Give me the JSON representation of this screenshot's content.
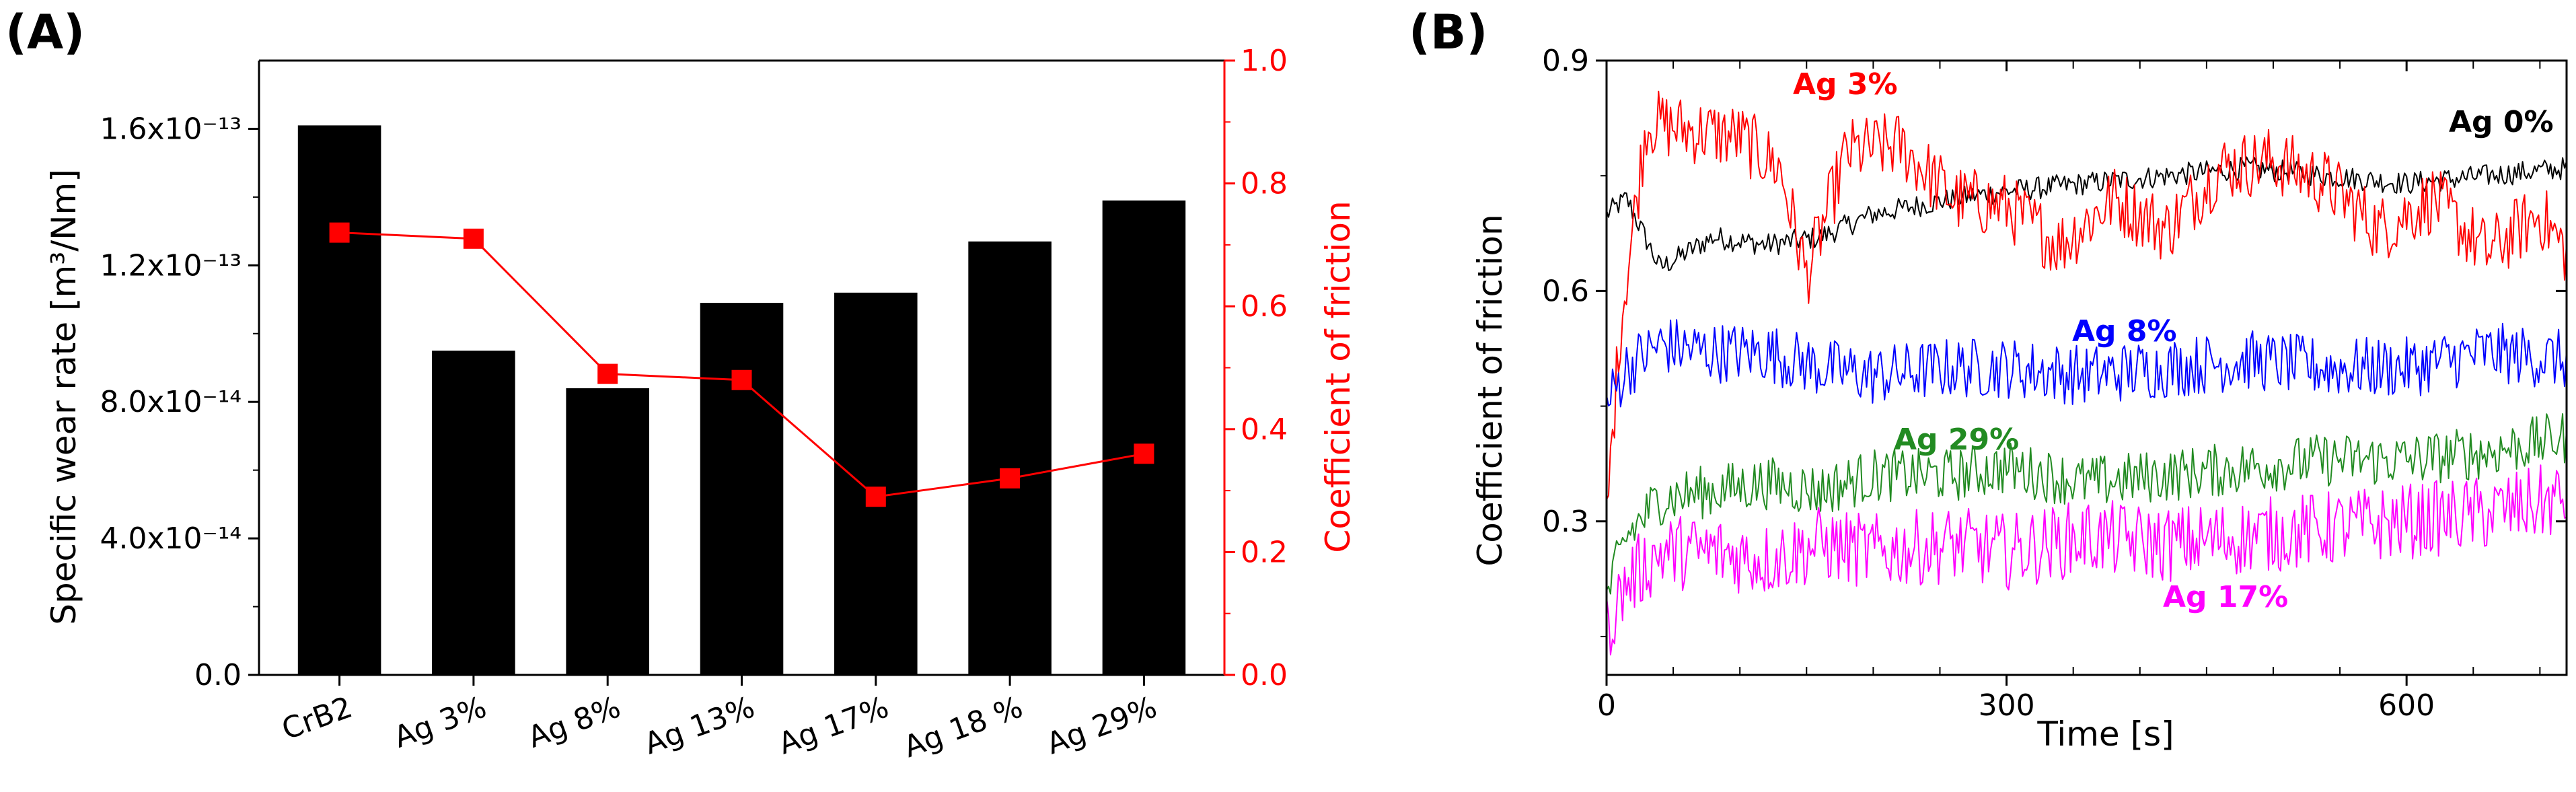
{
  "chart_data": [
    {
      "panel": "(A)",
      "type": "bar",
      "categories": [
        "CrB2",
        "Ag 3%",
        "Ag 8%",
        "Ag 13%",
        "Ag 17%",
        "Ag 18 %",
        "Ag 29%"
      ],
      "ylabel_left": "Specific wear rate [m³/Nm]",
      "ylabel_right": "Coefficient of friction",
      "ylim_left": [
        0,
        1.8e-13
      ],
      "ylim_right": [
        0,
        1.0
      ],
      "yticks_left": [
        "0.0",
        "4.0x10⁻¹⁴",
        "8.0x10⁻¹⁴",
        "1.2x10⁻¹³",
        "1.6x10⁻¹³"
      ],
      "yticks_left_values": [
        0,
        4e-14,
        8e-14,
        1.2e-13,
        1.6e-13
      ],
      "yticks_right": [
        "0.0",
        "0.2",
        "0.4",
        "0.6",
        "0.8",
        "1.0"
      ],
      "yticks_right_values": [
        0,
        0.2,
        0.4,
        0.6,
        0.8,
        1.0
      ],
      "series": [
        {
          "name": "Specific wear rate",
          "kind": "bar",
          "axis": "left",
          "color": "#000000",
          "values": [
            1.61e-13,
            9.5e-14,
            8.4e-14,
            1.09e-13,
            1.12e-13,
            1.27e-13,
            1.39e-13
          ]
        },
        {
          "name": "Coefficient of friction",
          "kind": "line-marker",
          "axis": "right",
          "color": "#ff0000",
          "values": [
            0.72,
            0.71,
            0.49,
            0.48,
            0.29,
            0.32,
            0.36
          ]
        }
      ]
    },
    {
      "panel": "(B)",
      "type": "line",
      "xlabel": "Time [s]",
      "ylabel": "Coefficient of friction",
      "xlim": [
        0,
        720
      ],
      "ylim": [
        0.1,
        0.9
      ],
      "xticks": [
        "0",
        "300",
        "600"
      ],
      "xticks_values": [
        0,
        300,
        600
      ],
      "yticks": [
        "0.3",
        "0.6",
        "0.9"
      ],
      "yticks_values": [
        0.3,
        0.6,
        0.9
      ],
      "series": [
        {
          "name": "Ag 0%",
          "color": "#000000",
          "x": [
            0,
            15,
            40,
            80,
            120,
            160,
            200,
            260,
            300,
            360,
            420,
            480,
            540,
            600,
            660,
            720
          ],
          "y": [
            0.7,
            0.72,
            0.63,
            0.67,
            0.66,
            0.67,
            0.7,
            0.72,
            0.73,
            0.74,
            0.75,
            0.76,
            0.75,
            0.74,
            0.75,
            0.76
          ]
        },
        {
          "name": "Ag 3%",
          "color": "#ff0000",
          "x": [
            0,
            10,
            30,
            60,
            100,
            130,
            150,
            180,
            220,
            260,
            300,
            340,
            380,
            420,
            460,
            500,
            540,
            580,
            620,
            660,
            700,
            720
          ],
          "y": [
            0.3,
            0.55,
            0.82,
            0.81,
            0.8,
            0.76,
            0.62,
            0.78,
            0.79,
            0.72,
            0.71,
            0.66,
            0.72,
            0.68,
            0.76,
            0.77,
            0.74,
            0.68,
            0.72,
            0.65,
            0.7,
            0.65
          ]
        },
        {
          "name": "Ag 8%",
          "color": "#0000ff",
          "x": [
            0,
            15,
            40,
            80,
            120,
            160,
            200,
            260,
            300,
            360,
            420,
            480,
            540,
            600,
            660,
            720
          ],
          "y": [
            0.45,
            0.5,
            0.53,
            0.52,
            0.52,
            0.5,
            0.49,
            0.5,
            0.5,
            0.49,
            0.5,
            0.51,
            0.5,
            0.5,
            0.52,
            0.51
          ]
        },
        {
          "name": "Ag 29%",
          "color": "#228b22",
          "x": [
            0,
            15,
            40,
            80,
            120,
            160,
            200,
            260,
            300,
            360,
            420,
            480,
            540,
            600,
            660,
            720
          ],
          "y": [
            0.2,
            0.28,
            0.33,
            0.34,
            0.35,
            0.34,
            0.36,
            0.36,
            0.37,
            0.35,
            0.36,
            0.37,
            0.38,
            0.38,
            0.39,
            0.41
          ]
        },
        {
          "name": "Ag 17%",
          "color": "#ff00ff",
          "x": [
            0,
            15,
            40,
            80,
            120,
            160,
            200,
            260,
            300,
            360,
            420,
            480,
            540,
            600,
            660,
            720
          ],
          "y": [
            0.16,
            0.22,
            0.26,
            0.26,
            0.25,
            0.27,
            0.26,
            0.27,
            0.26,
            0.28,
            0.27,
            0.28,
            0.29,
            0.3,
            0.31,
            0.33
          ]
        }
      ]
    }
  ]
}
